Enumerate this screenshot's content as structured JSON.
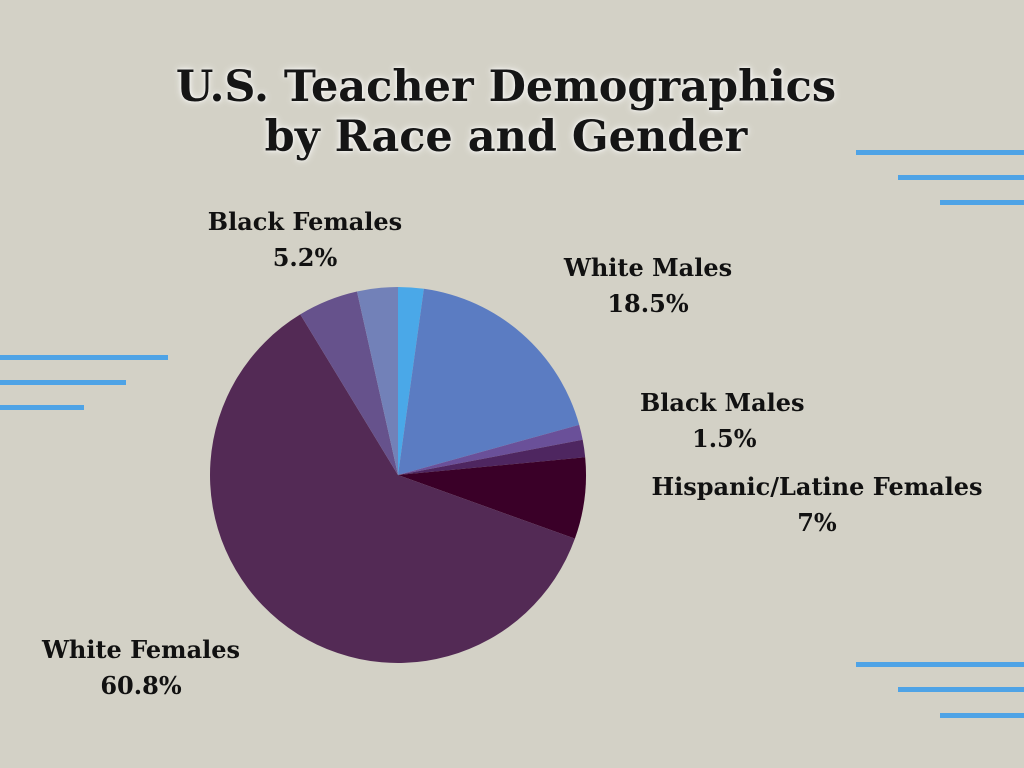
{
  "colors": {
    "background": "#d3d1c6",
    "accent_lines": "#4ea3e6"
  },
  "chart_data": {
    "type": "pie",
    "title": "U.S. Teacher Demographics by Race and Gender",
    "title_lines": [
      "U.S. Teacher Demographics",
      "by Race and Gender"
    ],
    "slices": [
      {
        "name": "Blue slice (unlabeled)",
        "value": 2.2,
        "color": "#4aa8e8",
        "label": "",
        "pct": ""
      },
      {
        "name": "White Males",
        "value": 18.5,
        "color": "#5b7cc2",
        "label": "White Males",
        "pct": "18.5%"
      },
      {
        "name": "Purple slice (unlabeled)",
        "value": 1.3,
        "color": "#6a5099",
        "label": "",
        "pct": ""
      },
      {
        "name": "Black Males",
        "value": 1.5,
        "color": "#4e2660",
        "label": "Black Males",
        "pct": "1.5%"
      },
      {
        "name": "Hispanic/Latine Females",
        "value": 7,
        "color": "#3a0028",
        "label": "Hispanic/Latine Females",
        "pct": "7%"
      },
      {
        "name": "White Females",
        "value": 60.8,
        "color": "#532a55",
        "label": "White Females",
        "pct": "60.8%"
      },
      {
        "name": "Black Females",
        "value": 5.2,
        "color": "#66528c",
        "label": "Black Females",
        "pct": "5.2%"
      },
      {
        "name": "Slate slice (unlabeled)",
        "value": 3.5,
        "color": "#7281b8",
        "label": "",
        "pct": ""
      }
    ]
  }
}
